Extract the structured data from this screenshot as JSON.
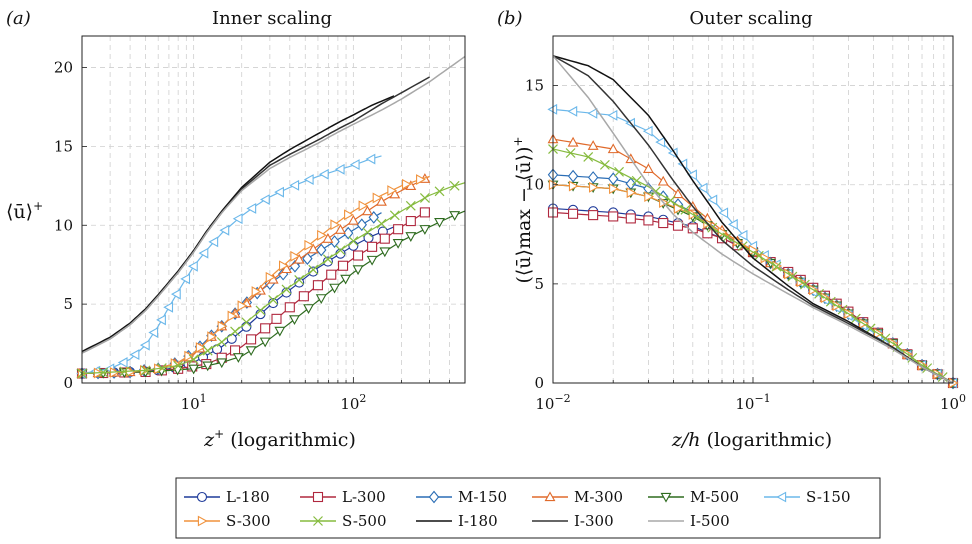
{
  "chart_data": [
    {
      "panel": "(a)",
      "title": "Inner scaling",
      "type": "line",
      "xscale": "log",
      "xlim": [
        2,
        500
      ],
      "ylim": [
        0,
        22
      ],
      "xticks": [
        {
          "v": 10,
          "label": "10^1"
        },
        {
          "v": 100,
          "label": "10^2"
        }
      ],
      "yticks": [
        0,
        5,
        10,
        15,
        20
      ],
      "xlabel_var": "z",
      "xlabel_sup": "+",
      "xlabel_rest": " (logarithmic)",
      "ylabel": "⟨ū⟩",
      "ylabel_sup": "+",
      "grid": true,
      "series": [
        {
          "name": "L-180",
          "x": [
            2,
            4,
            6,
            8,
            10,
            15,
            20,
            30,
            40,
            60,
            80,
            100,
            130,
            180
          ],
          "y": [
            0.6,
            0.7,
            0.8,
            1.0,
            1.3,
            2.3,
            3.3,
            4.9,
            5.9,
            7.3,
            8.1,
            8.7,
            9.3,
            9.9
          ]
        },
        {
          "name": "L-300",
          "x": [
            2,
            5,
            8,
            12,
            15,
            20,
            30,
            40,
            60,
            80,
            100,
            150,
            200,
            300
          ],
          "y": [
            0.6,
            0.7,
            0.9,
            1.2,
            1.6,
            2.3,
            3.7,
            4.8,
            6.2,
            7.2,
            7.9,
            9.0,
            9.9,
            11.0
          ]
        },
        {
          "name": "M-150",
          "x": [
            2,
            4,
            6,
            8,
            10,
            12,
            15,
            20,
            25,
            30,
            40,
            50,
            60,
            80,
            100,
            120,
            150
          ],
          "y": [
            0.6,
            0.7,
            0.9,
            1.3,
            1.9,
            2.7,
            3.6,
            4.8,
            5.7,
            6.3,
            7.2,
            7.8,
            8.3,
            9.1,
            9.7,
            10.2,
            10.8
          ]
        },
        {
          "name": "M-300",
          "x": [
            2,
            4,
            6,
            8,
            10,
            12,
            15,
            20,
            30,
            40,
            60,
            80,
            100,
            150,
            200,
            300
          ],
          "y": [
            0.6,
            0.7,
            0.9,
            1.3,
            1.8,
            2.6,
            3.6,
            4.8,
            6.4,
            7.4,
            8.7,
            9.6,
            10.3,
            11.5,
            12.2,
            13.1
          ]
        },
        {
          "name": "M-500",
          "x": [
            2,
            5,
            10,
            15,
            20,
            30,
            40,
            60,
            80,
            100,
            150,
            200,
            300,
            400,
            500
          ],
          "y": [
            0.6,
            0.7,
            0.9,
            1.3,
            1.7,
            2.8,
            3.8,
            5.2,
            6.2,
            7.0,
            8.2,
            9.0,
            9.9,
            10.5,
            10.9
          ]
        },
        {
          "name": "S-150",
          "x": [
            2,
            3,
            4,
            5,
            6,
            7,
            8,
            10,
            12,
            15,
            20,
            25,
            30,
            40,
            50,
            60,
            80,
            100,
            120,
            150
          ],
          "y": [
            0.6,
            0.9,
            1.5,
            2.4,
            3.6,
            4.8,
            5.8,
            7.4,
            8.4,
            9.5,
            10.6,
            11.3,
            11.8,
            12.4,
            12.8,
            13.1,
            13.5,
            13.8,
            14.1,
            14.4
          ]
        },
        {
          "name": "S-300",
          "x": [
            2,
            4,
            6,
            8,
            10,
            12,
            15,
            20,
            30,
            40,
            60,
            80,
            100,
            150,
            200,
            300
          ],
          "y": [
            0.6,
            0.7,
            0.9,
            1.3,
            1.9,
            2.6,
            3.6,
            4.9,
            6.7,
            7.8,
            9.2,
            10.2,
            10.9,
            11.9,
            12.5,
            13.1
          ]
        },
        {
          "name": "S-500",
          "x": [
            2,
            5,
            8,
            10,
            15,
            20,
            30,
            40,
            60,
            80,
            100,
            150,
            200,
            300,
            400,
            500
          ],
          "y": [
            0.6,
            0.8,
            1.1,
            1.5,
            2.6,
            3.6,
            5.1,
            6.1,
            7.4,
            8.3,
            9.0,
            10.1,
            10.9,
            11.9,
            12.4,
            12.7
          ]
        },
        {
          "name": "I-180",
          "x": [
            2,
            3,
            4,
            5,
            6,
            8,
            10,
            12,
            15,
            20,
            30,
            40,
            60,
            80,
            100,
            130,
            180
          ],
          "y": [
            2.0,
            2.9,
            3.8,
            4.7,
            5.6,
            7.1,
            8.4,
            9.6,
            10.9,
            12.4,
            14.0,
            14.8,
            15.8,
            16.5,
            17.0,
            17.6,
            18.2
          ]
        },
        {
          "name": "I-300",
          "x": [
            2,
            3,
            4,
            5,
            6,
            8,
            10,
            12,
            15,
            20,
            30,
            40,
            60,
            80,
            100,
            150,
            200,
            300
          ],
          "y": [
            1.9,
            2.8,
            3.7,
            4.6,
            5.5,
            7.0,
            8.3,
            9.5,
            10.8,
            12.3,
            13.8,
            14.5,
            15.4,
            16.1,
            16.6,
            17.7,
            18.4,
            19.4
          ]
        },
        {
          "name": "I-500",
          "x": [
            2,
            3,
            4,
            5,
            6,
            8,
            10,
            12,
            15,
            20,
            30,
            40,
            60,
            80,
            100,
            150,
            200,
            300,
            400,
            500
          ],
          "y": [
            1.9,
            2.8,
            3.7,
            4.6,
            5.5,
            7.0,
            8.3,
            9.5,
            10.8,
            12.2,
            13.6,
            14.3,
            15.2,
            15.9,
            16.4,
            17.3,
            18.0,
            19.1,
            20.0,
            20.7
          ]
        }
      ]
    },
    {
      "panel": "(b)",
      "title": "Outer scaling",
      "type": "line",
      "xscale": "log",
      "xlim": [
        0.01,
        1
      ],
      "ylim": [
        0,
        17.5
      ],
      "xticks": [
        {
          "v": 0.01,
          "label": "10^-2"
        },
        {
          "v": 0.1,
          "label": "10^-1"
        },
        {
          "v": 1,
          "label": "10^0"
        }
      ],
      "yticks": [
        0,
        5,
        10,
        15
      ],
      "xlabel_var": "z/h",
      "xlabel_rest": " (logarithmic)",
      "ylabel": "(⟨ū⟩max − ⟨ū⟩)",
      "ylabel_sup": "+",
      "grid": true,
      "series": [
        {
          "name": "L-180",
          "x": [
            0.01,
            0.02,
            0.03,
            0.05,
            0.07,
            0.1,
            0.15,
            0.2,
            0.3,
            0.5,
            0.7,
            1.0
          ],
          "y": [
            8.8,
            8.6,
            8.4,
            7.9,
            7.3,
            6.6,
            5.6,
            4.8,
            3.6,
            2.0,
            0.9,
            0.0
          ]
        },
        {
          "name": "L-300",
          "x": [
            0.01,
            0.02,
            0.03,
            0.05,
            0.07,
            0.1,
            0.15,
            0.2,
            0.3,
            0.5,
            0.7,
            1.0
          ],
          "y": [
            8.6,
            8.4,
            8.2,
            7.8,
            7.3,
            6.6,
            5.6,
            4.8,
            3.6,
            2.0,
            0.9,
            0.0
          ]
        },
        {
          "name": "M-150",
          "x": [
            0.01,
            0.02,
            0.03,
            0.05,
            0.07,
            0.1,
            0.15,
            0.2,
            0.3,
            0.5,
            0.7,
            1.0
          ],
          "y": [
            10.5,
            10.3,
            9.8,
            8.6,
            7.6,
            6.6,
            5.5,
            4.7,
            3.5,
            2.0,
            0.9,
            0.0
          ]
        },
        {
          "name": "M-300",
          "x": [
            0.01,
            0.02,
            0.03,
            0.05,
            0.07,
            0.1,
            0.15,
            0.2,
            0.3,
            0.5,
            0.7,
            1.0
          ],
          "y": [
            12.3,
            11.8,
            10.8,
            8.9,
            7.7,
            6.6,
            5.5,
            4.7,
            3.5,
            2.0,
            0.9,
            0.0
          ]
        },
        {
          "name": "M-500",
          "x": [
            0.01,
            0.02,
            0.03,
            0.05,
            0.07,
            0.1,
            0.15,
            0.2,
            0.3,
            0.5,
            0.7,
            1.0
          ],
          "y": [
            10.0,
            9.8,
            9.4,
            8.4,
            7.5,
            6.6,
            5.5,
            4.7,
            3.5,
            2.0,
            0.9,
            0.0
          ]
        },
        {
          "name": "S-150",
          "x": [
            0.01,
            0.02,
            0.03,
            0.04,
            0.05,
            0.06,
            0.07,
            0.08,
            0.1,
            0.15,
            0.2,
            0.3,
            0.5,
            0.7,
            1.0
          ],
          "y": [
            13.8,
            13.5,
            12.7,
            11.6,
            10.5,
            9.5,
            8.7,
            8.0,
            6.9,
            5.5,
            4.6,
            3.4,
            1.9,
            0.9,
            0.0
          ]
        },
        {
          "name": "S-300",
          "x": [
            0.01,
            0.02,
            0.03,
            0.05,
            0.07,
            0.1,
            0.15,
            0.2,
            0.3,
            0.5,
            0.7,
            1.0
          ],
          "y": [
            10.0,
            9.8,
            9.4,
            8.5,
            7.6,
            6.7,
            5.5,
            4.7,
            3.5,
            2.0,
            0.9,
            0.0
          ]
        },
        {
          "name": "S-500",
          "x": [
            0.01,
            0.015,
            0.02,
            0.03,
            0.05,
            0.07,
            0.1,
            0.15,
            0.2,
            0.3,
            0.5,
            0.7,
            1.0
          ],
          "y": [
            11.8,
            11.4,
            10.8,
            9.9,
            8.5,
            7.5,
            6.6,
            5.5,
            4.7,
            3.5,
            2.0,
            0.9,
            0.0
          ]
        },
        {
          "name": "I-180",
          "x": [
            0.01,
            0.015,
            0.02,
            0.03,
            0.04,
            0.05,
            0.07,
            0.1,
            0.15,
            0.2,
            0.3,
            0.5,
            0.7,
            1.0
          ],
          "y": [
            16.5,
            16.0,
            15.3,
            13.5,
            11.7,
            10.2,
            8.1,
            6.3,
            4.9,
            4.0,
            3.1,
            1.8,
            0.8,
            0.0
          ]
        },
        {
          "name": "I-300",
          "x": [
            0.01,
            0.015,
            0.02,
            0.03,
            0.04,
            0.05,
            0.07,
            0.1,
            0.15,
            0.2,
            0.3,
            0.5,
            0.7,
            1.0
          ],
          "y": [
            16.5,
            15.5,
            14.2,
            12.0,
            10.2,
            8.9,
            7.2,
            5.9,
            4.7,
            3.9,
            3.0,
            1.8,
            0.8,
            0.0
          ]
        },
        {
          "name": "I-500",
          "x": [
            0.01,
            0.015,
            0.02,
            0.03,
            0.04,
            0.05,
            0.07,
            0.1,
            0.15,
            0.2,
            0.3,
            0.5,
            0.7,
            1.0
          ],
          "y": [
            16.5,
            14.4,
            12.6,
            10.0,
            8.5,
            7.6,
            6.5,
            5.5,
            4.5,
            3.8,
            2.9,
            1.7,
            0.8,
            0.0
          ]
        }
      ]
    }
  ],
  "legend": [
    {
      "name": "L-180",
      "color": "#1f3b9a",
      "marker": "circle"
    },
    {
      "name": "L-300",
      "color": "#b0283e",
      "marker": "square"
    },
    {
      "name": "M-150",
      "color": "#2a6db5",
      "marker": "diamond"
    },
    {
      "name": "M-300",
      "color": "#e06a2b",
      "marker": "triangle-up"
    },
    {
      "name": "M-500",
      "color": "#2e6b1f",
      "marker": "triangle-down"
    },
    {
      "name": "S-150",
      "color": "#6cb8ea",
      "marker": "triangle-left"
    },
    {
      "name": "S-300",
      "color": "#f0923c",
      "marker": "triangle-right"
    },
    {
      "name": "S-500",
      "color": "#86bb3f",
      "marker": "cross"
    },
    {
      "name": "I-180",
      "color": "#111111",
      "marker": "none"
    },
    {
      "name": "I-300",
      "color": "#333333",
      "marker": "none"
    },
    {
      "name": "I-500",
      "color": "#a8a8a8",
      "marker": "none"
    }
  ]
}
